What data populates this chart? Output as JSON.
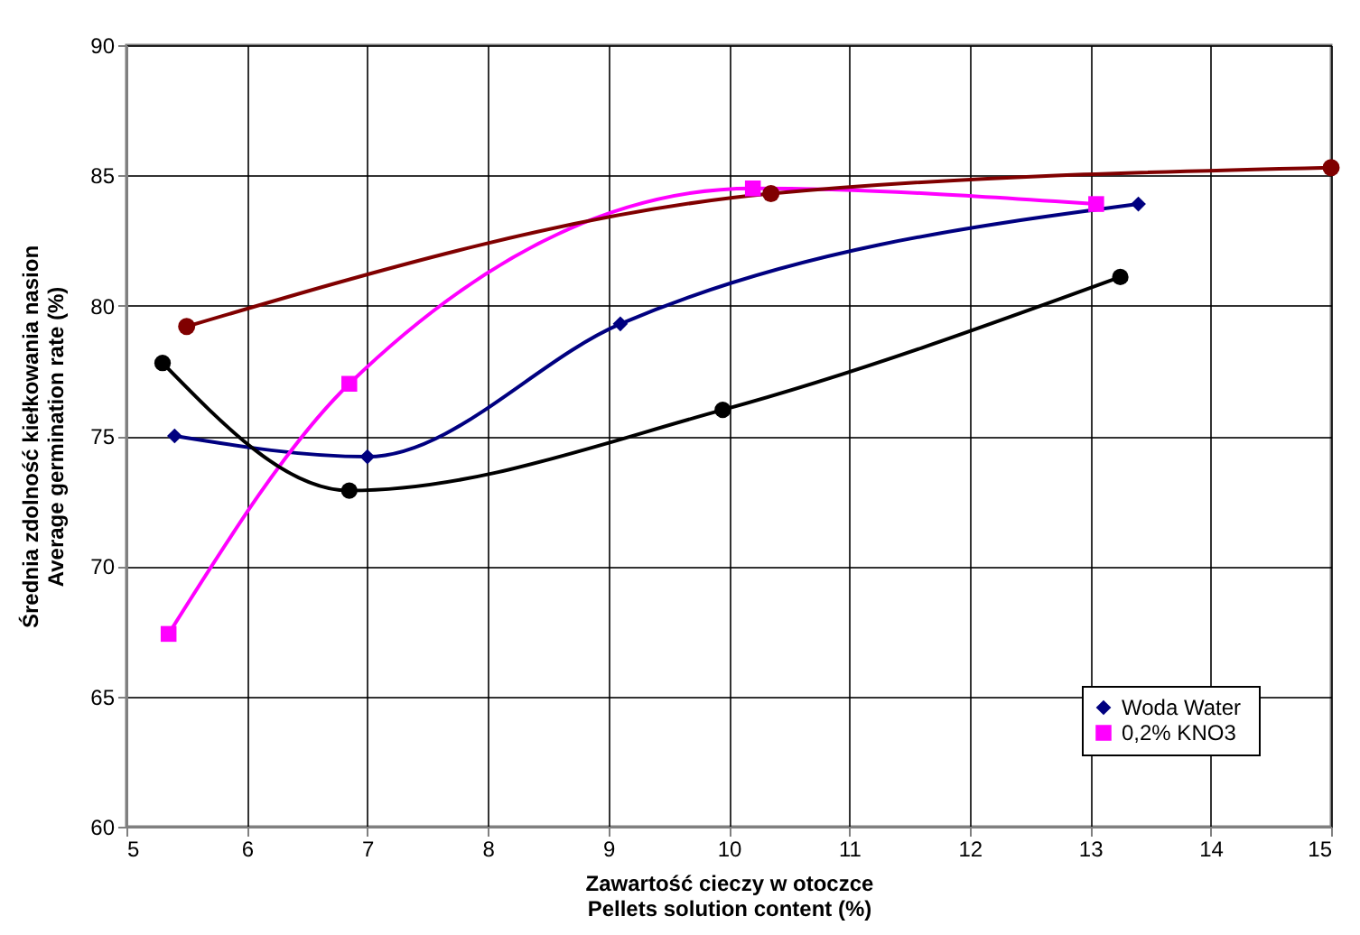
{
  "chart_data": {
    "type": "line",
    "xlabel": "Zawartość cieczy w otoczce\nPellets solution content (%)",
    "ylabel": "Średnia zdolność kiełkowania nasion\nAverage germination rate (%)",
    "xlim": [
      5,
      15
    ],
    "xticks": [
      5,
      6,
      7,
      8,
      9,
      10,
      11,
      12,
      13,
      14,
      15
    ],
    "ylim": [
      60,
      90
    ],
    "yticks": [
      60,
      65,
      70,
      75,
      80,
      85,
      90
    ],
    "grid": true,
    "legend": "bottom right",
    "series": [
      {
        "name": "Woda  Water",
        "color": "#000080",
        "marker": "diamond",
        "x": [
          5.4,
          7.0,
          9.1,
          13.4
        ],
        "values": [
          75,
          74.2,
          79.3,
          83.9
        ]
      },
      {
        "name": "0,2% KNO3",
        "color": "#ff00ff",
        "marker": "square",
        "x": [
          5.35,
          6.85,
          10.2,
          13.05
        ],
        "values": [
          67.4,
          77,
          84.5,
          83.9
        ]
      },
      {
        "color": "#000000",
        "marker": "circle",
        "x": [
          5.3,
          6.85,
          9.95,
          13.25
        ],
        "values": [
          77.8,
          72.9,
          76,
          81.1
        ]
      },
      {
        "color": "#800000",
        "marker": "circle",
        "x": [
          5.5,
          10.35,
          15
        ],
        "values": [
          79.2,
          84.3,
          85.3
        ]
      }
    ]
  }
}
